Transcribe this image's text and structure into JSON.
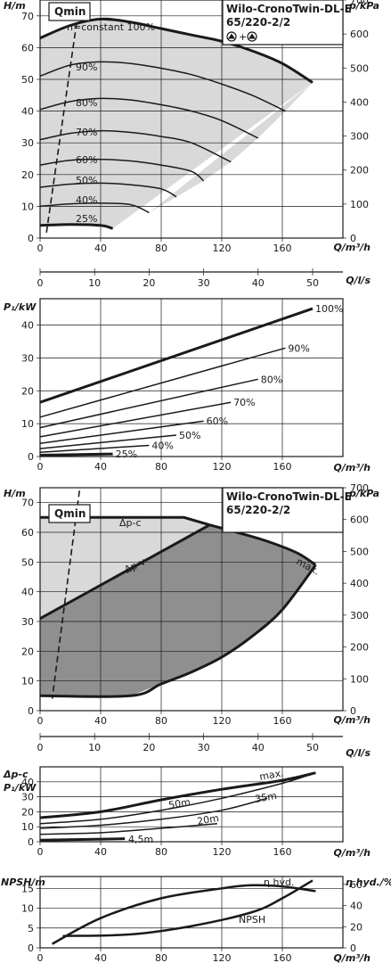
{
  "pump_model_line1": "Wilo-CronoTwin-DL-E",
  "pump_model_line2": "65/220-2/2",
  "qmin_label": "Qmin",
  "chart_data": [
    {
      "id": "c1",
      "type": "line",
      "title": "Wilo-CronoTwin-DL-E 65/220-2/2",
      "ylabel": "H/m",
      "y2label": "p/kPa",
      "xlabel": "Q/m³/h",
      "x2label": "Q/l/s",
      "xlim": [
        0,
        200
      ],
      "ylim": [
        0,
        75
      ],
      "xticks": [
        "0",
        "40",
        "80",
        "120",
        "160"
      ],
      "yticks": [
        "0",
        "10",
        "20",
        "30",
        "40",
        "50",
        "60",
        "70"
      ],
      "y2ticks": [
        "0",
        "100",
        "200",
        "300",
        "400",
        "500",
        "600",
        "700"
      ],
      "x2ticks": [
        "0",
        "10",
        "20",
        "30",
        "40",
        "50"
      ],
      "series": [
        {
          "name": "n=constant 100%",
          "bold": true,
          "x": [
            0,
            20,
            40,
            60,
            80,
            100,
            120,
            140,
            160,
            180
          ],
          "y": [
            63,
            67,
            69,
            68,
            66,
            64,
            62,
            59,
            55,
            49
          ]
        },
        {
          "name": "90%",
          "x": [
            0,
            20,
            40,
            60,
            80,
            100,
            120,
            140,
            162
          ],
          "y": [
            51,
            54.5,
            55.5,
            55,
            53.5,
            51.5,
            48.5,
            45,
            40
          ]
        },
        {
          "name": "80%",
          "x": [
            0,
            20,
            40,
            60,
            80,
            100,
            120,
            144
          ],
          "y": [
            40.5,
            43,
            44,
            43.5,
            42,
            40,
            37,
            31.5
          ]
        },
        {
          "name": "70%",
          "x": [
            0,
            20,
            40,
            60,
            80,
            100,
            126
          ],
          "y": [
            31,
            33,
            33.8,
            33.3,
            32,
            30,
            24
          ]
        },
        {
          "name": "60%",
          "x": [
            0,
            20,
            40,
            60,
            80,
            100,
            108
          ],
          "y": [
            23,
            24.5,
            24.8,
            24.3,
            23,
            21,
            18
          ]
        },
        {
          "name": "50%",
          "x": [
            0,
            20,
            40,
            60,
            80,
            90
          ],
          "y": [
            16,
            17,
            17.3,
            16.8,
            15.5,
            13
          ]
        },
        {
          "name": "40%",
          "x": [
            0,
            20,
            40,
            60,
            72
          ],
          "y": [
            10,
            10.8,
            11,
            10.5,
            8
          ]
        },
        {
          "name": "25%",
          "bold": true,
          "x": [
            0,
            20,
            40,
            48
          ],
          "y": [
            4,
            4.3,
            4,
            3
          ]
        }
      ]
    },
    {
      "id": "c2",
      "type": "line",
      "ylabel": "P₁/kW",
      "xlabel": "Q/m³/h",
      "xlim": [
        0,
        200
      ],
      "ylim": [
        0,
        48
      ],
      "xticks": [
        "0",
        "40",
        "80",
        "120",
        "160"
      ],
      "yticks": [
        "0",
        "10",
        "20",
        "30",
        "40"
      ],
      "series": [
        {
          "name": "100%",
          "bold": true,
          "x": [
            0,
            180
          ],
          "y": [
            16.5,
            45
          ]
        },
        {
          "name": "90%",
          "x": [
            0,
            162
          ],
          "y": [
            12,
            33
          ]
        },
        {
          "name": "80%",
          "x": [
            0,
            144
          ],
          "y": [
            8.8,
            23.5
          ]
        },
        {
          "name": "70%",
          "x": [
            0,
            126
          ],
          "y": [
            6,
            16.5
          ]
        },
        {
          "name": "60%",
          "x": [
            0,
            108
          ],
          "y": [
            4,
            10.8
          ]
        },
        {
          "name": "50%",
          "x": [
            0,
            90
          ],
          "y": [
            2.4,
            6.5
          ]
        },
        {
          "name": "40%",
          "x": [
            0,
            72
          ],
          "y": [
            1.3,
            3.4
          ]
        },
        {
          "name": "25%",
          "bold": true,
          "x": [
            0,
            48
          ],
          "y": [
            0.4,
            0.8
          ]
        }
      ]
    },
    {
      "id": "c3",
      "type": "area",
      "title": "Wilo-CronoTwin-DL-E 65/220-2/2",
      "ylabel": "H/m",
      "y2label": "p/kPa",
      "xlabel": "Q/m³/h",
      "x2label": "Q/l/s",
      "xlim": [
        0,
        200
      ],
      "ylim": [
        0,
        75
      ],
      "xticks": [
        "0",
        "40",
        "80",
        "120",
        "160"
      ],
      "yticks": [
        "0",
        "10",
        "20",
        "30",
        "40",
        "50",
        "60",
        "70"
      ],
      "y2ticks": [
        "0",
        "100",
        "200",
        "300",
        "400",
        "500",
        "600",
        "700"
      ],
      "x2ticks": [
        "0",
        "10",
        "20",
        "30",
        "40",
        "50"
      ],
      "annotations": [
        "Δp-c",
        "Δp-v",
        "max."
      ],
      "max_curve": {
        "x": [
          112,
          130,
          150,
          170,
          182
        ],
        "y": [
          62.5,
          60,
          57,
          53,
          49
        ]
      },
      "dpc_line": {
        "x": [
          0,
          95,
          112
        ],
        "y": [
          65,
          65,
          62.5
        ]
      },
      "dpv_line": {
        "x": [
          0,
          112
        ],
        "y": [
          31,
          62.5
        ]
      },
      "min_curve": {
        "x": [
          0,
          60,
          80,
          100,
          120,
          140,
          160,
          182
        ],
        "y": [
          5,
          5,
          9,
          13,
          18,
          25,
          34,
          49
        ]
      }
    },
    {
      "id": "c4",
      "type": "line",
      "ylabel": "Δp-c P₁/kW",
      "xlabel": "Q/m³/h",
      "xlim": [
        0,
        200
      ],
      "ylim": [
        0,
        50
      ],
      "xticks": [
        "0",
        "40",
        "80",
        "120",
        "160"
      ],
      "yticks": [
        "0",
        "10",
        "20",
        "30",
        "40"
      ],
      "series": [
        {
          "name": "max.",
          "bold": true,
          "x": [
            0,
            40,
            80,
            120,
            160,
            182
          ],
          "y": [
            16,
            20,
            28,
            35,
            41,
            46
          ]
        },
        {
          "name": "50m",
          "x": [
            0,
            40,
            80,
            120,
            160,
            182
          ],
          "y": [
            12,
            15,
            21,
            29,
            39,
            46
          ]
        },
        {
          "name": "35m",
          "x": [
            0,
            40,
            80,
            120,
            150
          ],
          "y": [
            9,
            11,
            15,
            21,
            29
          ]
        },
        {
          "name": "20m",
          "x": [
            0,
            40,
            80,
            117
          ],
          "y": [
            5,
            6,
            9,
            12
          ]
        },
        {
          "name": "4,5m",
          "bold": true,
          "x": [
            0,
            56
          ],
          "y": [
            1,
            2
          ]
        }
      ]
    },
    {
      "id": "c5",
      "type": "line",
      "ylabel": "NPSH/m",
      "y2label": "η hyd./%",
      "xlabel": "Q/m³/h",
      "xlim": [
        0,
        200
      ],
      "ylim": [
        0,
        18
      ],
      "xticks": [
        "0",
        "40",
        "80",
        "120",
        "160"
      ],
      "yticks": [
        "0",
        "5",
        "10",
        "15"
      ],
      "y2ticks": [
        "0",
        "20",
        "40",
        "60"
      ],
      "series": [
        {
          "name": "η hyd.",
          "bold": true,
          "x": [
            8,
            40,
            80,
            120,
            140,
            160,
            182
          ],
          "y": [
            1,
            7.5,
            12.5,
            15,
            15.8,
            15.5,
            14.3
          ]
        },
        {
          "name": "NPSH",
          "bold": true,
          "x": [
            15,
            60,
            100,
            140,
            160,
            180
          ],
          "y": [
            3,
            3.4,
            5.5,
            9,
            12.5,
            17
          ]
        }
      ]
    }
  ]
}
